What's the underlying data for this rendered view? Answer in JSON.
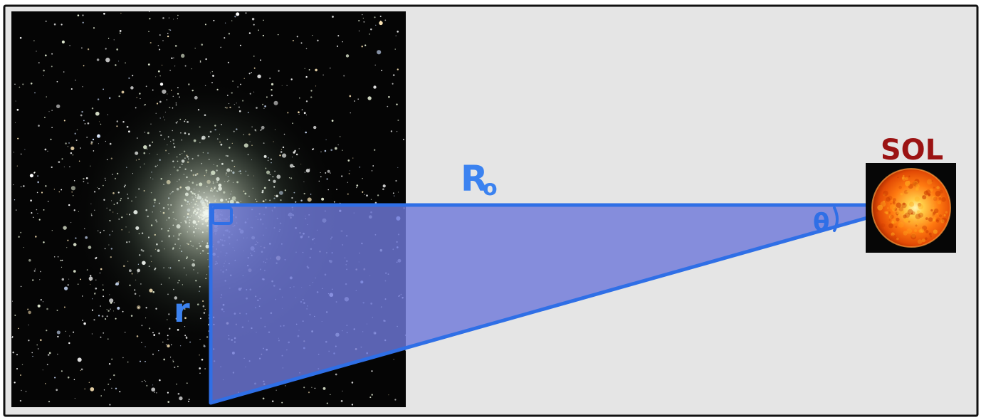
{
  "labels": {
    "sun_name": "SOL",
    "distance": "R",
    "distance_subscript": "o",
    "cluster_radius": "r",
    "angle": "θ"
  },
  "colors": {
    "frame": "#111111",
    "panel_background": "#e5e5e5",
    "space_background": "#050505",
    "triangle_fill": "#6f79d9",
    "triangle_stroke": "#2f6fe6",
    "label_blue": "#3b82f0",
    "sun_label": "#9b1313",
    "sun_core": "#fff1a0",
    "sun_edge": "#d83a00"
  },
  "icons": {
    "cluster": "globular-cluster-image",
    "sun": "sun-image",
    "right_angle": "right-angle-marker"
  }
}
